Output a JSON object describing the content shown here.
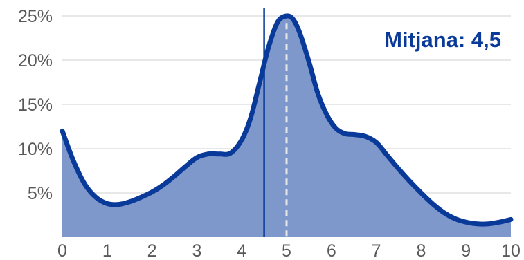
{
  "chart_data": {
    "type": "area",
    "x": [
      0,
      0.25,
      0.5,
      0.75,
      1,
      1.25,
      1.5,
      1.75,
      2,
      2.25,
      2.5,
      2.75,
      3,
      3.25,
      3.5,
      3.75,
      4,
      4.2,
      4.4,
      4.6,
      4.8,
      5,
      5.15,
      5.3,
      5.5,
      5.7,
      5.9,
      6.1,
      6.3,
      6.5,
      6.75,
      7,
      7.25,
      7.5,
      7.75,
      8,
      8.25,
      8.5,
      8.75,
      9,
      9.25,
      9.5,
      9.75,
      10
    ],
    "values": [
      12.0,
      8.6,
      6.0,
      4.5,
      3.8,
      3.7,
      4.0,
      4.5,
      5.1,
      5.9,
      6.9,
      8.0,
      9.0,
      9.4,
      9.4,
      9.5,
      11.0,
      13.5,
      17.5,
      21.5,
      24.3,
      25.0,
      24.6,
      23.0,
      19.8,
      16.2,
      13.8,
      12.3,
      11.7,
      11.6,
      11.4,
      10.7,
      9.2,
      7.7,
      6.3,
      5.0,
      3.8,
      2.8,
      2.1,
      1.7,
      1.5,
      1.5,
      1.7,
      2.0
    ],
    "xticks": [
      "0",
      "1",
      "2",
      "3",
      "4",
      "5",
      "6",
      "7",
      "8",
      "9",
      "10"
    ],
    "yticks": [
      "5%",
      "10%",
      "15%",
      "20%",
      "25%"
    ],
    "ytick_values": [
      5,
      10,
      15,
      20,
      25
    ],
    "xlim": [
      0,
      10
    ],
    "ylim": [
      0,
      25
    ],
    "grid": true,
    "mean_value": 4.5,
    "mode_value": 5,
    "annotation": "Mitjana: 4,5",
    "colors": {
      "line": "#0a3a99",
      "fill": "#7f98cc",
      "mean_line": "#0a3a99",
      "mode_line": "#e6e6e6",
      "grid": "#e8e8e8",
      "text": "#595959"
    }
  }
}
